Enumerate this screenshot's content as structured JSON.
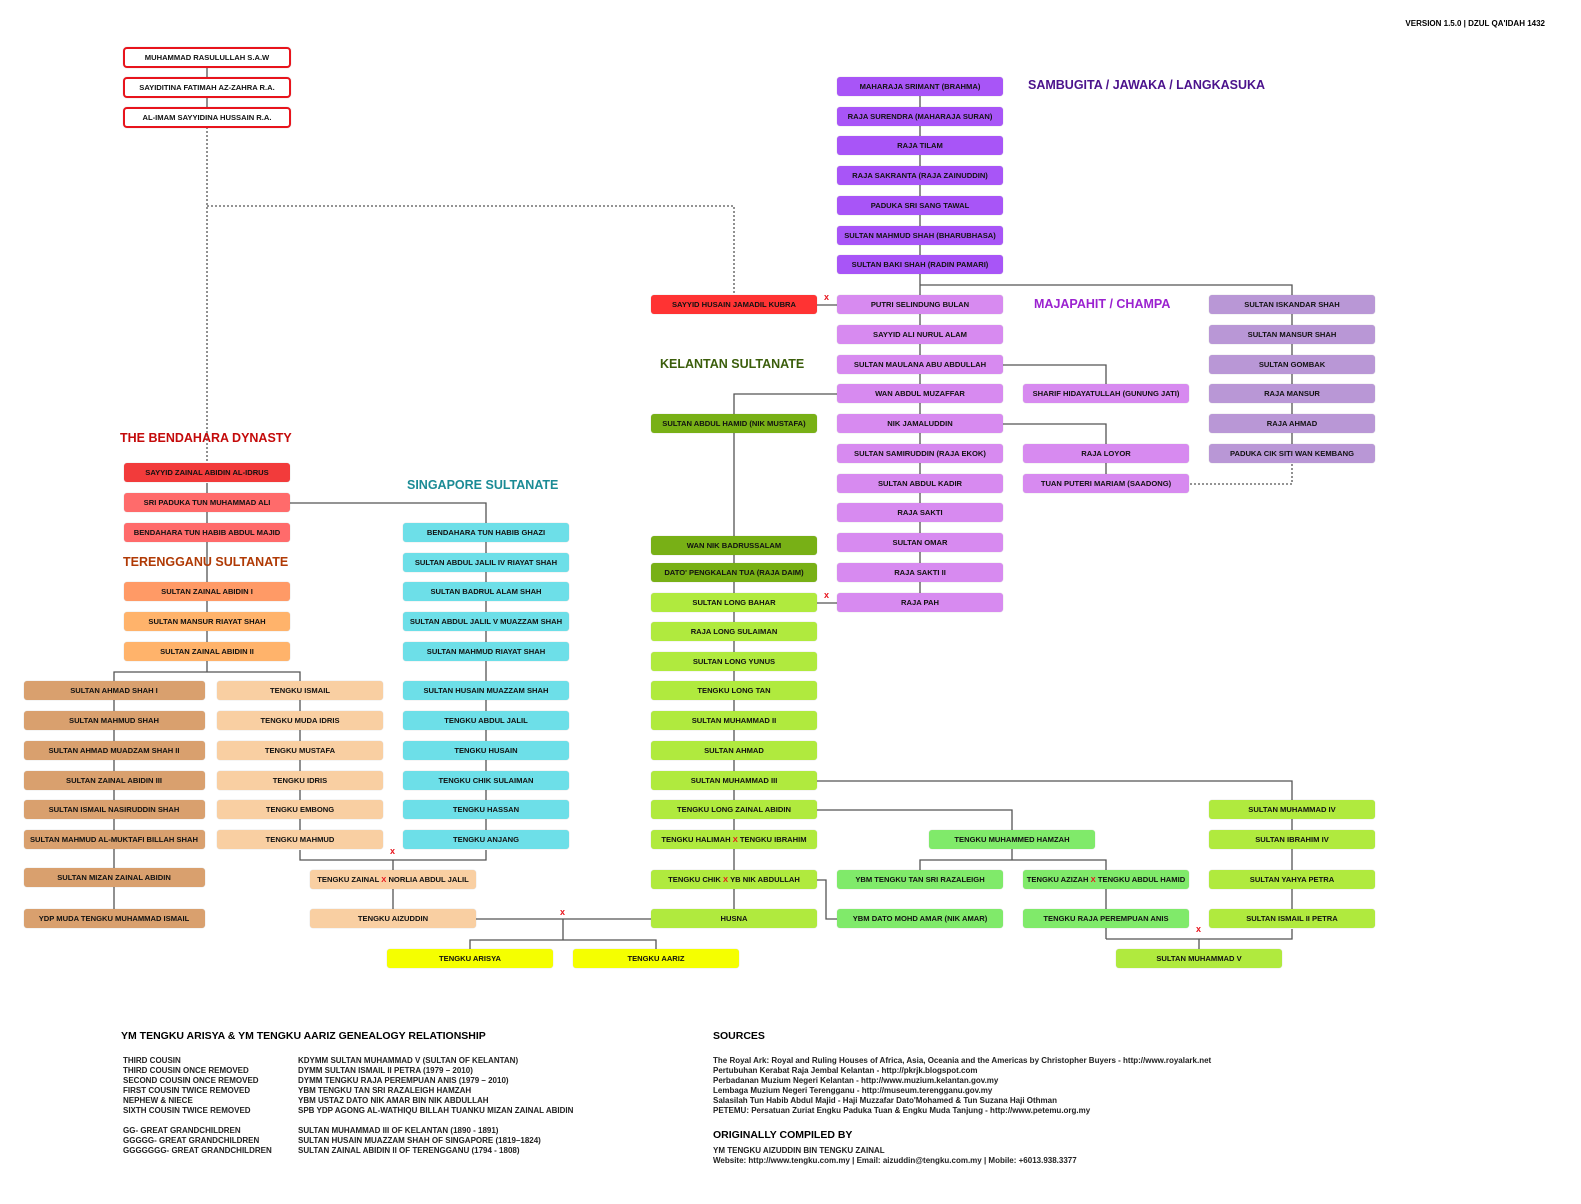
{
  "version": "VERSION 1.5.0  |  DZUL QA'IDAH 1432",
  "marriage_symbol": "X",
  "colors": {
    "prophet_outline": "#e8141c",
    "bendahara_dark": "#f23b3b",
    "bendahara": "#ff6b6b",
    "terengganu_dark": "#ff9a66",
    "terengganu": "#ffb36b",
    "terengganu_branch": "#d9a06e",
    "peach": "#f9cfa2",
    "singapore": "#6ddfe8",
    "yellow": "#f5ff00",
    "kelantan_dark": "#78b016",
    "kelantan": "#b0ea3e",
    "kelantan_light": "#80ea6a",
    "sambugita": "#a855f7",
    "majapahit": "#d78af0",
    "champa_right": "#b997d6",
    "husain_red": "#ff3333"
  },
  "headings": {
    "sambugita": {
      "text": "SAMBUGITA / JAWAKA / LANGKASUKA",
      "color": "#4b128c"
    },
    "majapahit": {
      "text": "MAJAPAHIT / CHAMPA",
      "color": "#9b22d0"
    },
    "kelantan": {
      "text": "KELANTAN SULTANATE",
      "color": "#3b5e0b"
    },
    "bendahara": {
      "text": "THE BENDAHARA DYNASTY",
      "color": "#c40a0a"
    },
    "singapore": {
      "text": "SINGAPORE SULTANATE",
      "color": "#1a8b95"
    },
    "terengganu": {
      "text": "TERENGGANU SULTANATE",
      "color": "#b03a05"
    }
  },
  "nodes": [
    {
      "id": "p1",
      "name": "MUHAMMAD RASULULLAH S.A.W",
      "group": "prophet_outline"
    },
    {
      "id": "p2",
      "name": "SAYIDITINA FATIMAH AZ-ZAHRA R.A.",
      "group": "prophet_outline"
    },
    {
      "id": "p3",
      "name": "AL-IMAM SAYYIDINA HUSSAIN R.A.",
      "group": "prophet_outline"
    },
    {
      "id": "s1",
      "name": "MAHARAJA SRIMANT (BRAHMA)",
      "group": "sambugita"
    },
    {
      "id": "s2",
      "name": "RAJA SURENDRA (MAHARAJA SURAN)",
      "group": "sambugita"
    },
    {
      "id": "s3",
      "name": "RAJA TILAM",
      "group": "sambugita"
    },
    {
      "id": "s4",
      "name": "RAJA SAKRANTA (RAJA ZAINUDDIN)",
      "group": "sambugita"
    },
    {
      "id": "s5",
      "name": "PADUKA SRI SANG TAWAL",
      "group": "sambugita"
    },
    {
      "id": "s6",
      "name": "SULTAN MAHMUD SHAH (BHARUBHASA)",
      "group": "sambugita"
    },
    {
      "id": "s7",
      "name": "SULTAN BAKI SHAH (RADIN PAMARI)",
      "group": "sambugita"
    },
    {
      "id": "m1",
      "name": "PUTRI SELINDUNG BULAN",
      "group": "majapahit"
    },
    {
      "id": "m2",
      "name": "SAYYID ALI NURUL ALAM",
      "group": "majapahit"
    },
    {
      "id": "m3",
      "name": "SULTAN MAULANA ABU ABDULLAH",
      "group": "majapahit"
    },
    {
      "id": "m4",
      "name": "WAN ABDUL MUZAFFAR",
      "group": "majapahit"
    },
    {
      "id": "m5",
      "name": "NIK JAMALUDDIN",
      "group": "majapahit"
    },
    {
      "id": "m6",
      "name": "SULTAN SAMIRUDDIN (RAJA EKOK)",
      "group": "majapahit"
    },
    {
      "id": "m7",
      "name": "SULTAN ABDUL KADIR",
      "group": "majapahit"
    },
    {
      "id": "m8",
      "name": "RAJA SAKTI",
      "group": "majapahit"
    },
    {
      "id": "m9",
      "name": "SULTAN OMAR",
      "group": "majapahit"
    },
    {
      "id": "m10",
      "name": "RAJA SAKTI II",
      "group": "majapahit"
    },
    {
      "id": "m11",
      "name": "RAJA PAH",
      "group": "majapahit"
    },
    {
      "id": "mb1",
      "name": "SHARIF HIDAYATULLAH (GUNUNG JATI)",
      "group": "majapahit"
    },
    {
      "id": "mb2",
      "name": "RAJA LOYOR",
      "group": "majapahit"
    },
    {
      "id": "mb3",
      "name": "TUAN PUTERI MARIAM (SAADONG)",
      "group": "majapahit"
    },
    {
      "id": "c1",
      "name": "SULTAN ISKANDAR SHAH",
      "group": "champa_right"
    },
    {
      "id": "c2",
      "name": "SULTAN MANSUR SHAH",
      "group": "champa_right"
    },
    {
      "id": "c3",
      "name": "SULTAN GOMBAK",
      "group": "champa_right"
    },
    {
      "id": "c4",
      "name": "RAJA MANSUR",
      "group": "champa_right"
    },
    {
      "id": "c5",
      "name": "RAJA AHMAD",
      "group": "champa_right"
    },
    {
      "id": "c6",
      "name": "PADUKA CIK SITI WAN KEMBANG",
      "group": "champa_right"
    },
    {
      "id": "sh",
      "name": "SAYYID HUSAIN JAMADIL KUBRA",
      "group": "husain_red"
    },
    {
      "id": "k1",
      "name": "SULTAN ABDUL HAMID (NIK MUSTAFA)",
      "group": "kelantan_dark"
    },
    {
      "id": "k2",
      "name": "WAN NIK BADRUSSALAM",
      "group": "kelantan_dark"
    },
    {
      "id": "k3",
      "name": "DATO' PENGKALAN TUA (RAJA DAIM)",
      "group": "kelantan_dark"
    },
    {
      "id": "k4",
      "name": "SULTAN LONG BAHAR",
      "group": "kelantan"
    },
    {
      "id": "k5",
      "name": "RAJA LONG SULAIMAN",
      "group": "kelantan"
    },
    {
      "id": "k6",
      "name": "SULTAN LONG YUNUS",
      "group": "kelantan"
    },
    {
      "id": "k7",
      "name": "TENGKU LONG TAN",
      "group": "kelantan"
    },
    {
      "id": "k8",
      "name": "SULTAN MUHAMMAD II",
      "group": "kelantan"
    },
    {
      "id": "k9",
      "name": "SULTAN AHMAD",
      "group": "kelantan"
    },
    {
      "id": "k10",
      "name": "SULTAN MUHAMMAD III",
      "group": "kelantan"
    },
    {
      "id": "k11",
      "name": "TENGKU LONG ZAINAL ABIDIN",
      "group": "kelantan"
    },
    {
      "id": "k12",
      "name": "TENGKU HALIMAH",
      "spouse": "TENGKU IBRAHIM",
      "group": "kelantan"
    },
    {
      "id": "k13",
      "name": "TENGKU CHIK",
      "spouse": "YB NIK ABDULLAH",
      "group": "kelantan"
    },
    {
      "id": "k14",
      "name": "HUSNA",
      "group": "kelantan"
    },
    {
      "id": "h1",
      "name": "TENGKU MUHAMMED HAMZAH",
      "group": "kelantan_light"
    },
    {
      "id": "h2",
      "name": "YBM TENGKU TAN SRI RAZALEIGH",
      "group": "kelantan_light"
    },
    {
      "id": "h3",
      "name": "TENGKU AZIZAH",
      "spouse": "TENGKU ABDUL HAMID",
      "group": "kelantan_light"
    },
    {
      "id": "h4",
      "name": "YBM DATO MOHD AMAR (NIK AMAR)",
      "group": "kelantan_light"
    },
    {
      "id": "h5",
      "name": "TENGKU RAJA PEREMPUAN ANIS",
      "group": "kelantan_light"
    },
    {
      "id": "r1",
      "name": "SULTAN MUHAMMAD IV",
      "group": "kelantan"
    },
    {
      "id": "r2",
      "name": "SULTAN IBRAHIM IV",
      "group": "kelantan"
    },
    {
      "id": "r3",
      "name": "SULTAN YAHYA PETRA",
      "group": "kelantan"
    },
    {
      "id": "r4",
      "name": "SULTAN ISMAIL II PETRA",
      "group": "kelantan"
    },
    {
      "id": "r5",
      "name": "SULTAN MUHAMMAD V",
      "group": "kelantan"
    },
    {
      "id": "b1",
      "name": "SAYYID ZAINAL ABIDIN AL-IDRUS",
      "group": "bendahara_dark"
    },
    {
      "id": "b2",
      "name": "SRI PADUKA TUN MUHAMMAD ALI",
      "group": "bendahara"
    },
    {
      "id": "b3",
      "name": "BENDAHARA TUN HABIB ABDUL MAJID",
      "group": "bendahara"
    },
    {
      "id": "t1",
      "name": "SULTAN ZAINAL ABIDIN I",
      "group": "terengganu_dark"
    },
    {
      "id": "t2",
      "name": "SULTAN MANSUR RIAYAT SHAH",
      "group": "terengganu"
    },
    {
      "id": "t3",
      "name": "SULTAN ZAINAL ABIDIN II",
      "group": "terengganu"
    },
    {
      "id": "tb1",
      "name": "SULTAN AHMAD SHAH I",
      "group": "terengganu_branch"
    },
    {
      "id": "tb2",
      "name": "SULTAN MAHMUD SHAH",
      "group": "terengganu_branch"
    },
    {
      "id": "tb3",
      "name": "SULTAN AHMAD MUADZAM SHAH II",
      "group": "terengganu_branch"
    },
    {
      "id": "tb4",
      "name": "SULTAN ZAINAL ABIDIN III",
      "group": "terengganu_branch"
    },
    {
      "id": "tb5",
      "name": "SULTAN ISMAIL NASIRUDDIN SHAH",
      "group": "terengganu_branch"
    },
    {
      "id": "tb6",
      "name": "SULTAN MAHMUD AL-MUKTAFI BILLAH SHAH",
      "group": "terengganu_branch"
    },
    {
      "id": "tb7",
      "name": "SULTAN MIZAN ZAINAL ABIDIN",
      "group": "terengganu_branch"
    },
    {
      "id": "tb8",
      "name": "YDP MUDA TENGKU MUHAMMAD ISMAIL",
      "group": "terengganu_branch"
    },
    {
      "id": "tp1",
      "name": "TENGKU ISMAIL",
      "group": "peach"
    },
    {
      "id": "tp2",
      "name": "TENGKU MUDA IDRIS",
      "group": "peach"
    },
    {
      "id": "tp3",
      "name": "TENGKU MUSTAFA",
      "group": "peach"
    },
    {
      "id": "tp4",
      "name": "TENGKU IDRIS",
      "group": "peach"
    },
    {
      "id": "tp5",
      "name": "TENGKU EMBONG",
      "group": "peach"
    },
    {
      "id": "tp6",
      "name": "TENGKU MAHMUD",
      "group": "peach"
    },
    {
      "id": "tz",
      "name": "TENGKU ZAINAL",
      "spouse": "NORLIA ABDUL JALIL",
      "group": "peach"
    },
    {
      "id": "ta",
      "name": "TENGKU AIZUDDIN",
      "group": "peach"
    },
    {
      "id": "sg1",
      "name": "BENDAHARA TUN HABIB GHAZI",
      "group": "singapore"
    },
    {
      "id": "sg2",
      "name": "SULTAN ABDUL JALIL IV RIAYAT SHAH",
      "group": "singapore"
    },
    {
      "id": "sg3",
      "name": "SULTAN BADRUL ALAM SHAH",
      "group": "singapore"
    },
    {
      "id": "sg4",
      "name": "SULTAN ABDUL JALIL V MUAZZAM SHAH",
      "group": "singapore"
    },
    {
      "id": "sg5",
      "name": "SULTAN MAHMUD RIAYAT SHAH",
      "group": "singapore"
    },
    {
      "id": "sg6",
      "name": "SULTAN HUSAIN MUAZZAM SHAH",
      "group": "singapore"
    },
    {
      "id": "sg7",
      "name": "TENGKU ABDUL JALIL",
      "group": "singapore"
    },
    {
      "id": "sg8",
      "name": "TENGKU HUSAIN",
      "group": "singapore"
    },
    {
      "id": "sg9",
      "name": "TENGKU CHIK SULAIMAN",
      "group": "singapore"
    },
    {
      "id": "sg10",
      "name": "TENGKU HASSAN",
      "group": "singapore"
    },
    {
      "id": "sg11",
      "name": "TENGKU ANJANG",
      "group": "singapore"
    },
    {
      "id": "y1",
      "name": "TENGKU ARISYA",
      "group": "yellow"
    },
    {
      "id": "y2",
      "name": "TENGKU AARIZ",
      "group": "yellow"
    }
  ],
  "relationship": {
    "title": "YM TENGKU ARISYA & YM TENGKU AARIZ GENEALOGY RELATIONSHIP",
    "rows": [
      {
        "relation": "THIRD COUSIN",
        "person": "KDYMM SULTAN MUHAMMAD V (SULTAN OF KELANTAN)"
      },
      {
        "relation": "THIRD COUSIN ONCE REMOVED",
        "person": "DYMM SULTAN ISMAIL II PETRA (1979 – 2010)"
      },
      {
        "relation": "SECOND COUSIN ONCE REMOVED",
        "person": "DYMM TENGKU RAJA PEREMPUAN ANIS (1979 – 2010)"
      },
      {
        "relation": "FIRST COUSIN TWICE REMOVED",
        "person": "YBM TENGKU TAN SRI RAZALEIGH HAMZAH"
      },
      {
        "relation": "NEPHEW & NIECE",
        "person": "YBM USTAZ DATO NIK AMAR BIN NIK ABDULLAH"
      },
      {
        "relation": "SIXTH COUSIN TWICE REMOVED",
        "person": "SPB YDP AGONG AL-WATHIQU BILLAH TUANKU MIZAN ZAINAL ABIDIN"
      }
    ],
    "ancestors": [
      {
        "relation": "GG- GREAT GRANDCHILDREN",
        "person": "SULTAN MUHAMMAD III OF KELANTAN (1890 - 1891)"
      },
      {
        "relation": "GGGGG- GREAT GRANDCHILDREN",
        "person": "SULTAN HUSAIN MUAZZAM SHAH OF SINGAPORE (1819–1824)"
      },
      {
        "relation": "GGGGGGG- GREAT GRANDCHILDREN",
        "person": "SULTAN ZAINAL ABIDIN II OF TERENGGANU (1794 - 1808)"
      }
    ]
  },
  "sources": {
    "title": "SOURCES",
    "items": [
      "The Royal Ark: Royal and Ruling Houses of Africa, Asia, Oceania and the Americas by Christopher Buyers - http://www.royalark.net",
      "Pertubuhan Kerabat Raja Jembal Kelantan - http://pkrjk.blogspot.com",
      "Perbadanan Muzium Negeri Kelantan - http://www.muzium.kelantan.gov.my",
      "Lembaga Muzium Negeri Terengganu - http://museum.terengganu.gov.my",
      "Salasilah Tun Habib Abdul Majid - Haji Muzzafar Dato'Mohamed & Tun Suzana Haji Othman",
      "PETEMU: Persatuan Zuriat Engku Paduka Tuan & Engku Muda Tanjung - http://www.petemu.org.my"
    ]
  },
  "compiled": {
    "title": "ORIGINALLY COMPILED BY",
    "name": "YM TENGKU AIZUDDIN BIN TENGKU ZAINAL",
    "contact": "Website: http://www.tengku.com.my  |  Email: aizuddin@tengku.com.my  |  Mobile: +6013.938.3377"
  }
}
